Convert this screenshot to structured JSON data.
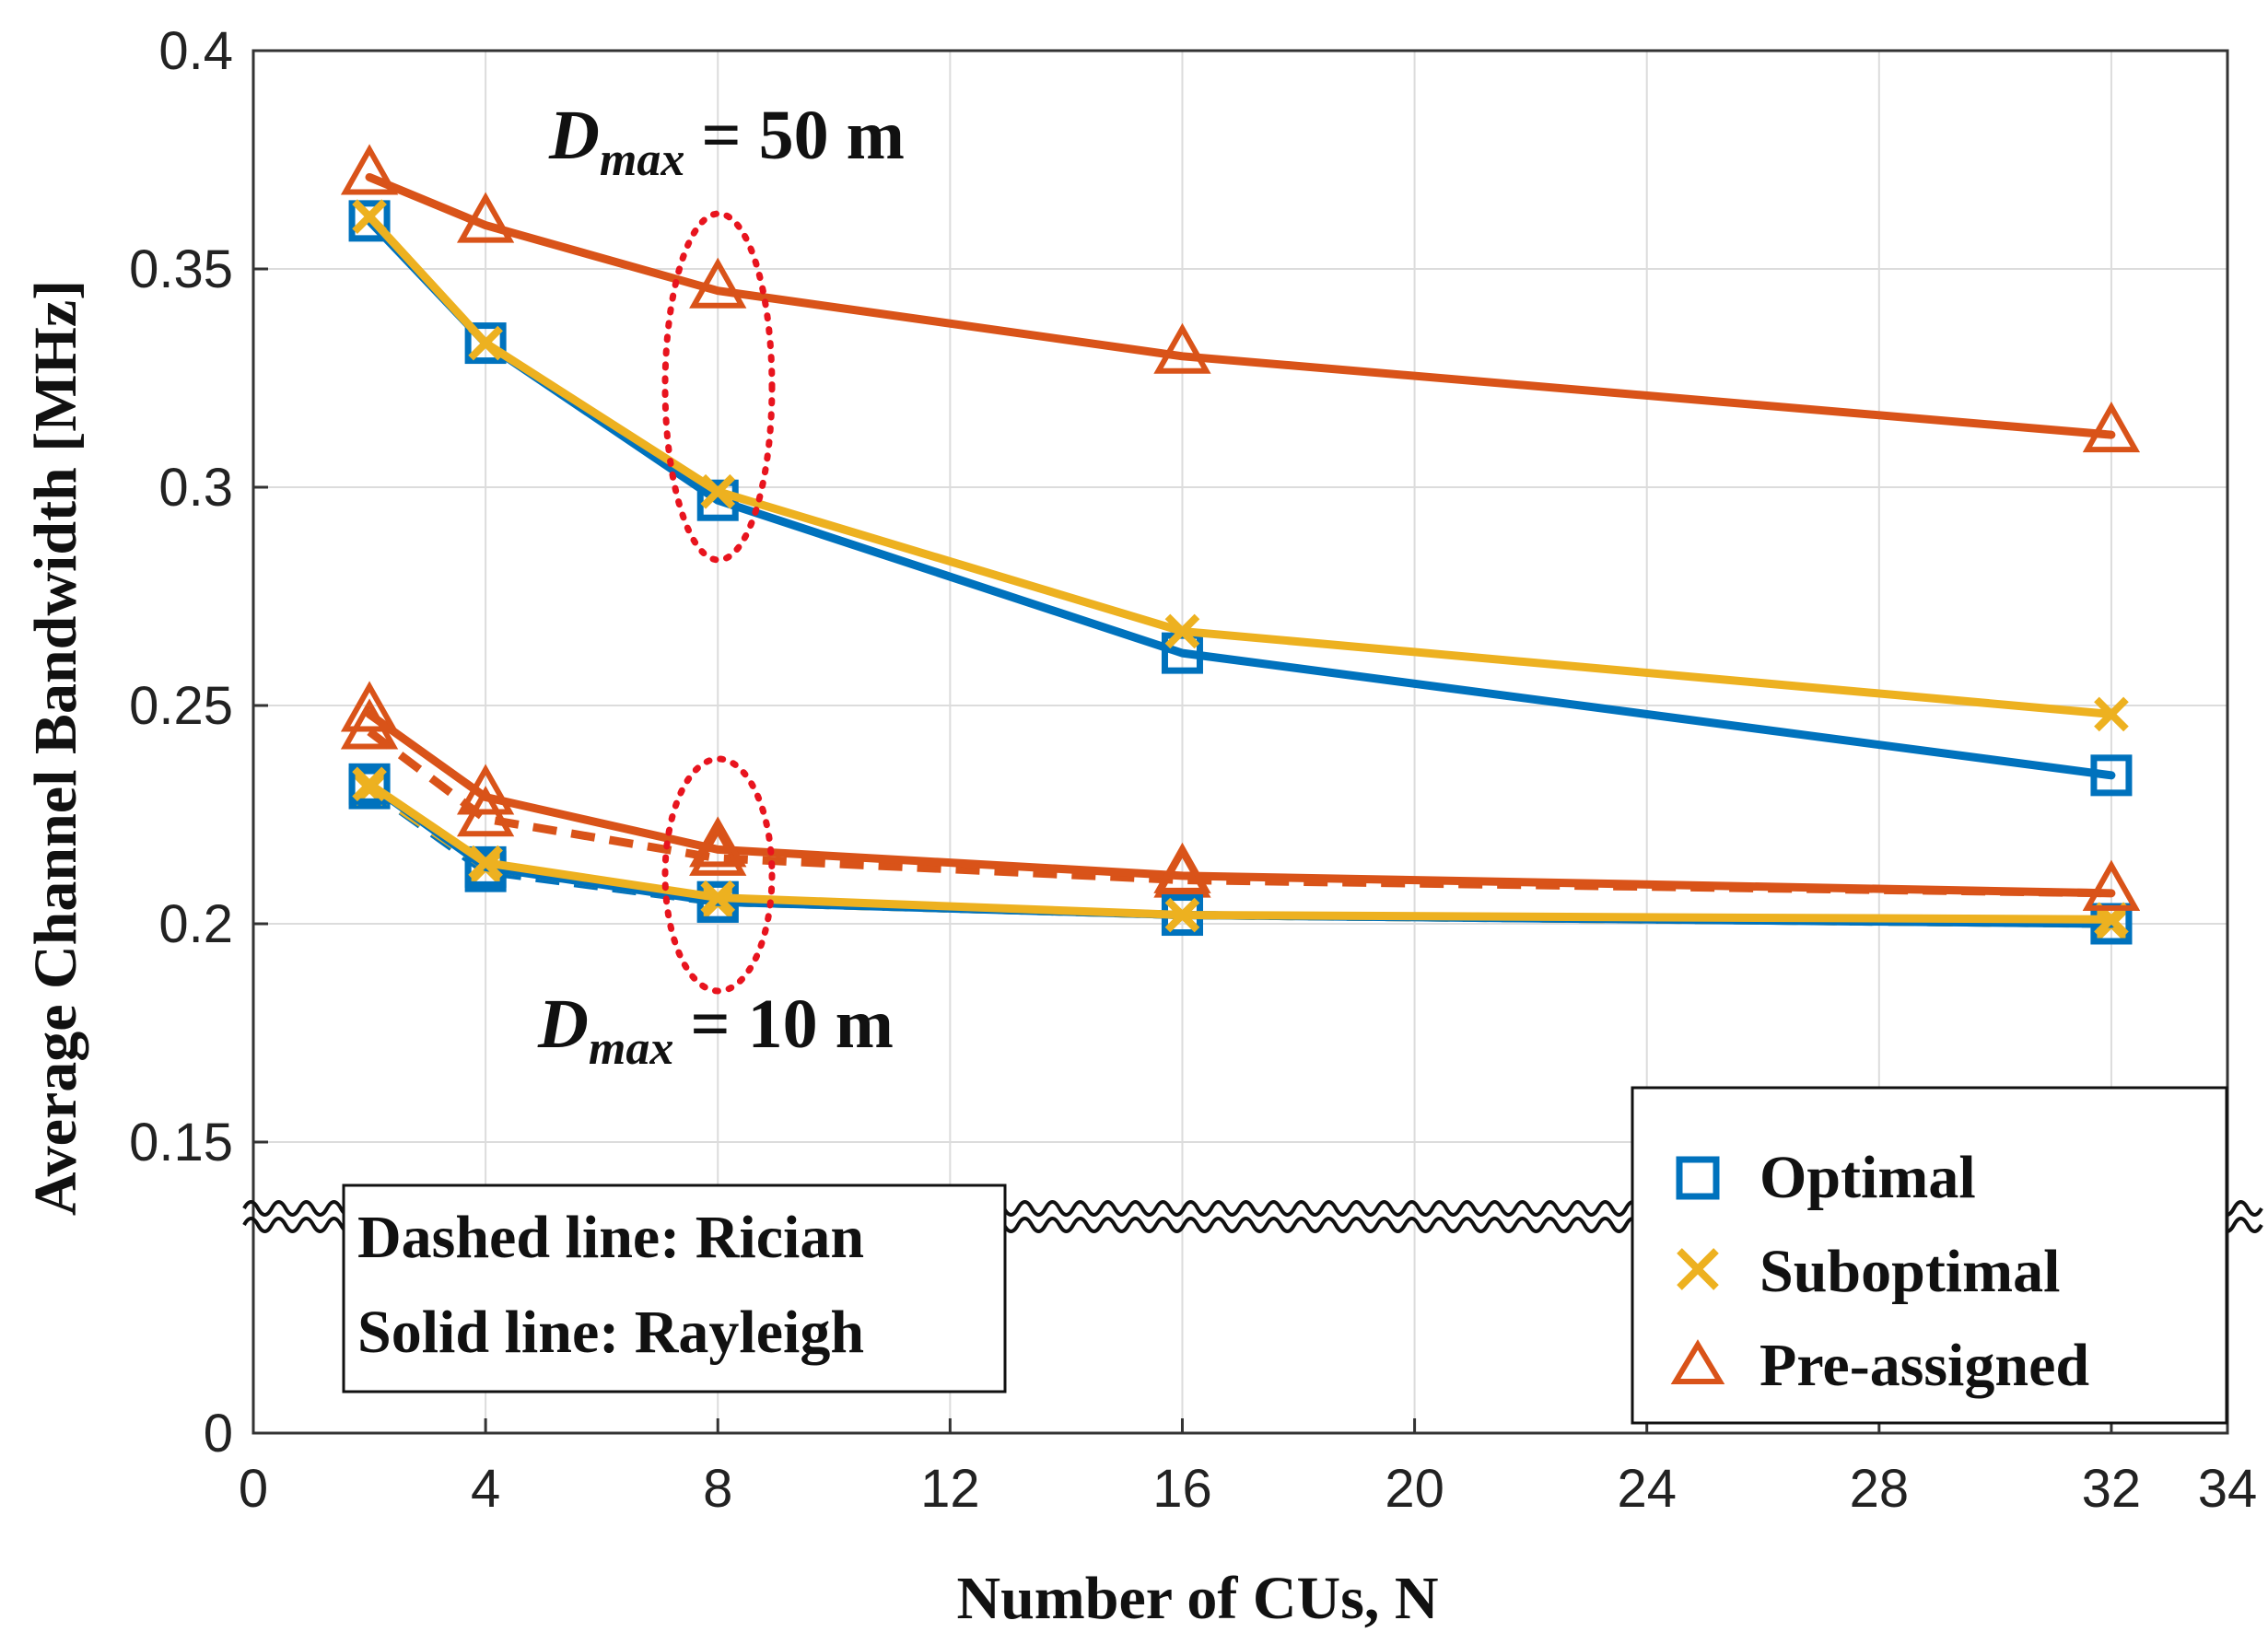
{
  "chart_data": {
    "type": "line",
    "xlabel": "Number of CUs, N",
    "ylabel": "Average Channel Bandwidth [MHz]",
    "xlim": [
      0,
      34
    ],
    "ylim_display": [
      0,
      0.4
    ],
    "axis_break": "between 0 and 0.15",
    "xticks": [
      "0",
      "4",
      "8",
      "12",
      "16",
      "20",
      "24",
      "28",
      "32",
      "34"
    ],
    "yticks": [
      "0",
      "0.15",
      "0.2",
      "0.25",
      "0.3",
      "0.35",
      "0.4"
    ],
    "grid": true,
    "legend_position": "bottom-right",
    "x": [
      2,
      4,
      8,
      16,
      32
    ],
    "colors": {
      "Optimal": "#0072BD",
      "Suboptimal": "#EDB120",
      "Pre-assigned": "#D95319",
      "highlight": "#E8141E"
    },
    "legend": [
      "Optimal",
      "Suboptimal",
      "Pre-assigned"
    ],
    "series": [
      {
        "group": "Dmax=50m",
        "legend": "Optimal",
        "style": "solid",
        "marker": "square",
        "values": [
          0.361,
          0.333,
          0.297,
          0.262,
          0.234
        ]
      },
      {
        "group": "Dmax=50m",
        "legend": "Suboptimal",
        "style": "solid",
        "marker": "x",
        "values": [
          0.362,
          0.333,
          0.299,
          0.267,
          0.248
        ]
      },
      {
        "group": "Dmax=50m",
        "legend": "Pre-assigned",
        "style": "solid",
        "marker": "triangle",
        "values": [
          0.371,
          0.36,
          0.345,
          0.33,
          0.312
        ]
      },
      {
        "group": "Dmax=10m",
        "legend": "Optimal",
        "style": "solid",
        "marker": "square",
        "values": [
          0.232,
          0.213,
          0.205,
          0.202,
          0.2
        ]
      },
      {
        "group": "Dmax=10m",
        "legend": "Optimal",
        "style": "dashed",
        "marker": "square",
        "values": [
          0.231,
          0.212,
          0.205,
          0.202,
          0.2
        ]
      },
      {
        "group": "Dmax=10m",
        "legend": "Suboptimal",
        "style": "solid",
        "marker": "x",
        "values": [
          0.232,
          0.214,
          0.206,
          0.202,
          0.201
        ]
      },
      {
        "group": "Dmax=10m",
        "legend": "Suboptimal",
        "style": "dashed",
        "marker": "x",
        "values": [
          0.231,
          0.213,
          0.205,
          0.202,
          0.2
        ]
      },
      {
        "group": "Dmax=10m",
        "legend": "Pre-assigned",
        "style": "solid",
        "marker": "triangle",
        "values": [
          0.248,
          0.229,
          0.217,
          0.211,
          0.207
        ]
      },
      {
        "group": "Dmax=10m",
        "legend": "Pre-assigned",
        "style": "dashed",
        "marker": "triangle",
        "values": [
          0.244,
          0.224,
          0.215,
          0.21,
          0.207
        ]
      }
    ],
    "annotations": {
      "top_main": "D",
      "top_sub": "max",
      "top_eq": "= 50 m",
      "bottom_main": "D",
      "bottom_sub": "max",
      "bottom_eq": "= 10 m",
      "box_line1": "Dashed line: Rician",
      "box_line2": "Solid line: Rayleigh"
    }
  }
}
